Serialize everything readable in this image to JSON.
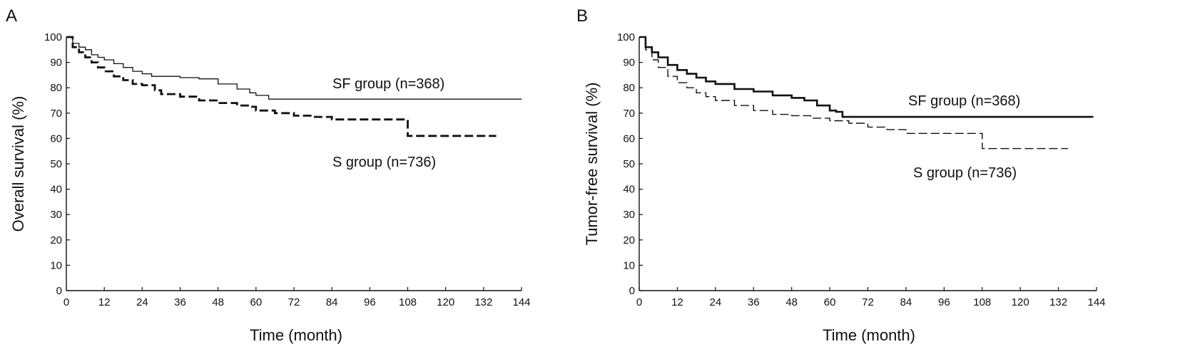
{
  "chart_data": [
    {
      "type": "line",
      "panel": "A",
      "title": "",
      "xlabel": "Time (month)",
      "ylabel": "Overall survival (%)",
      "xlim": [
        0,
        144
      ],
      "ylim": [
        0,
        100
      ],
      "xticks": [
        0,
        12,
        24,
        36,
        48,
        60,
        72,
        84,
        96,
        108,
        120,
        132,
        144
      ],
      "yticks": [
        0,
        10,
        20,
        30,
        40,
        50,
        60,
        70,
        80,
        90,
        100
      ],
      "grid": false,
      "series": [
        {
          "name": "SF group (n=368)",
          "style": "solid",
          "x": [
            0,
            2,
            4,
            6,
            8,
            10,
            12,
            15,
            18,
            21,
            24,
            27,
            30,
            36,
            42,
            48,
            54,
            58,
            60,
            62,
            64,
            72,
            84,
            96,
            108,
            120,
            132,
            144
          ],
          "y": [
            100,
            97.5,
            96,
            95,
            93,
            92,
            91,
            89.5,
            88,
            86.5,
            85.5,
            84.5,
            84.5,
            84,
            83.5,
            81.5,
            79.5,
            78,
            77,
            77,
            75.5,
            75.5,
            75.5,
            75.5,
            75.5,
            75.5,
            75.5,
            75.5
          ]
        },
        {
          "name": "S group (n=736)",
          "style": "dashed",
          "x": [
            0,
            2,
            4,
            6,
            8,
            10,
            12,
            15,
            18,
            21,
            24,
            28,
            30,
            36,
            42,
            48,
            54,
            58,
            60,
            62,
            66,
            72,
            78,
            84,
            90,
            96,
            102,
            107,
            108,
            114,
            120,
            126,
            132,
            136
          ],
          "y": [
            100,
            96,
            94,
            92,
            90,
            88,
            86.5,
            84.5,
            83,
            81.5,
            81,
            79,
            77.5,
            76.5,
            75,
            74,
            73,
            72.5,
            71,
            71,
            70,
            69,
            68.5,
            67.5,
            67.5,
            67.5,
            67.5,
            67.5,
            61,
            61,
            61,
            61,
            61,
            61
          ]
        }
      ],
      "annotations": [
        "SF group (n=368)",
        "S group (n=736)"
      ]
    },
    {
      "type": "line",
      "panel": "B",
      "title": "",
      "xlabel": "Time (month)",
      "ylabel": "Tumor-free survival (%)",
      "xlim": [
        0,
        144
      ],
      "ylim": [
        0,
        100
      ],
      "xticks": [
        0,
        12,
        24,
        36,
        48,
        60,
        72,
        84,
        96,
        108,
        120,
        132,
        144
      ],
      "yticks": [
        0,
        10,
        20,
        30,
        40,
        50,
        60,
        70,
        80,
        90,
        100
      ],
      "grid": false,
      "series": [
        {
          "name": "SF group (n=368)",
          "style": "solid",
          "x": [
            0,
            2,
            4,
            6,
            9,
            12,
            15,
            18,
            21,
            24,
            30,
            36,
            42,
            48,
            52,
            56,
            60,
            62,
            64,
            72,
            84,
            96,
            108,
            120,
            132,
            143
          ],
          "y": [
            100,
            96,
            94,
            92,
            89,
            87,
            85.5,
            84,
            82.5,
            81.5,
            79.5,
            78.5,
            77,
            76,
            75,
            73,
            71,
            70.5,
            68.5,
            68.5,
            68.5,
            68.5,
            68.5,
            68.5,
            68.5,
            68.5
          ]
        },
        {
          "name": "S group (n=736)",
          "style": "dashed",
          "x": [
            0,
            2,
            4,
            6,
            9,
            12,
            15,
            18,
            21,
            24,
            30,
            36,
            42,
            48,
            54,
            60,
            66,
            72,
            78,
            84,
            90,
            96,
            102,
            107,
            108,
            114,
            120,
            126,
            132,
            135
          ],
          "y": [
            100,
            95,
            91,
            88,
            84.5,
            82,
            80,
            78,
            76.5,
            75,
            73,
            71,
            69.5,
            69,
            68,
            67,
            66,
            64.5,
            63.5,
            62,
            62,
            62,
            62,
            62,
            56,
            56,
            56,
            56,
            56,
            56
          ]
        }
      ],
      "annotations": [
        "SF group (n=368)",
        "S group (n=736)"
      ]
    }
  ]
}
